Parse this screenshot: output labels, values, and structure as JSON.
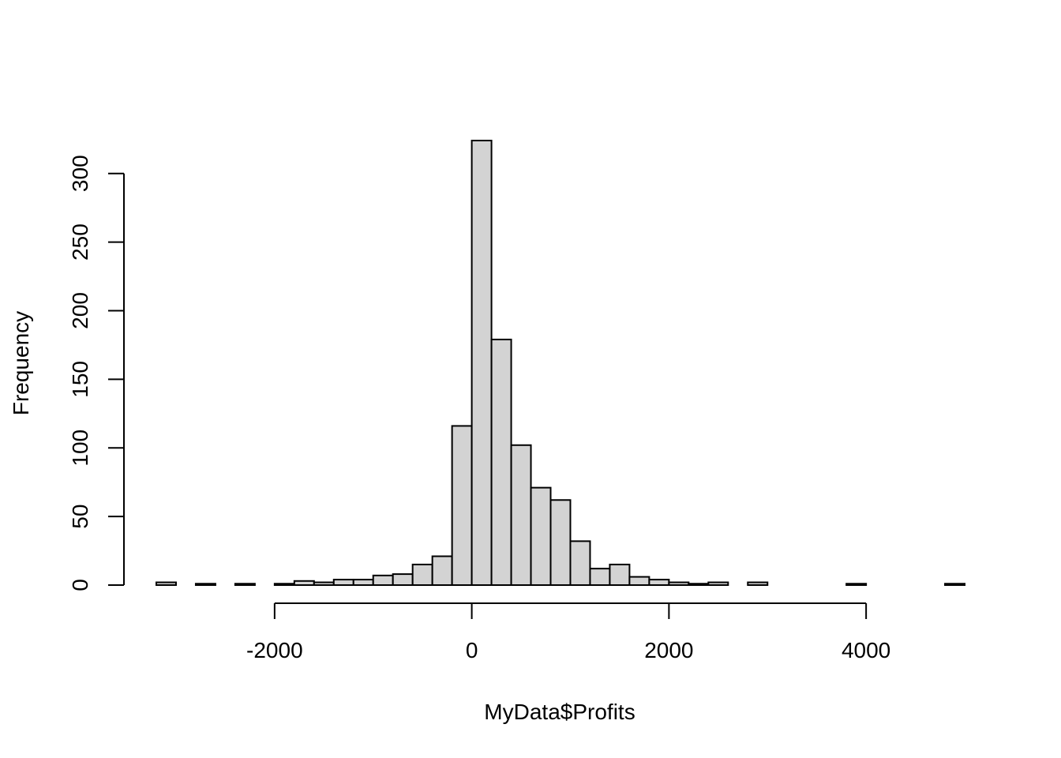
{
  "chart_data": {
    "type": "bar",
    "subtype": "histogram",
    "title": "",
    "xlabel": "MyData$Profits",
    "ylabel": "Frequency",
    "bin_width": 200,
    "bins": [
      {
        "x0": -3200,
        "x1": -3000,
        "count": 2
      },
      {
        "x0": -3000,
        "x1": -2800,
        "count": 0
      },
      {
        "x0": -2800,
        "x1": -2600,
        "count": 1
      },
      {
        "x0": -2600,
        "x1": -2400,
        "count": 0
      },
      {
        "x0": -2400,
        "x1": -2200,
        "count": 1
      },
      {
        "x0": -2200,
        "x1": -2000,
        "count": 0
      },
      {
        "x0": -2000,
        "x1": -1800,
        "count": 1
      },
      {
        "x0": -1800,
        "x1": -1600,
        "count": 3
      },
      {
        "x0": -1600,
        "x1": -1400,
        "count": 2
      },
      {
        "x0": -1400,
        "x1": -1200,
        "count": 4
      },
      {
        "x0": -1200,
        "x1": -1000,
        "count": 4
      },
      {
        "x0": -1000,
        "x1": -800,
        "count": 7
      },
      {
        "x0": -800,
        "x1": -600,
        "count": 8
      },
      {
        "x0": -600,
        "x1": -400,
        "count": 15
      },
      {
        "x0": -400,
        "x1": -200,
        "count": 21
      },
      {
        "x0": -200,
        "x1": 0,
        "count": 116
      },
      {
        "x0": 0,
        "x1": 200,
        "count": 324
      },
      {
        "x0": 200,
        "x1": 400,
        "count": 179
      },
      {
        "x0": 400,
        "x1": 600,
        "count": 102
      },
      {
        "x0": 600,
        "x1": 800,
        "count": 71
      },
      {
        "x0": 800,
        "x1": 1000,
        "count": 62
      },
      {
        "x0": 1000,
        "x1": 1200,
        "count": 32
      },
      {
        "x0": 1200,
        "x1": 1400,
        "count": 12
      },
      {
        "x0": 1400,
        "x1": 1600,
        "count": 15
      },
      {
        "x0": 1600,
        "x1": 1800,
        "count": 6
      },
      {
        "x0": 1800,
        "x1": 2000,
        "count": 4
      },
      {
        "x0": 2000,
        "x1": 2200,
        "count": 2
      },
      {
        "x0": 2200,
        "x1": 2400,
        "count": 1
      },
      {
        "x0": 2400,
        "x1": 2600,
        "count": 2
      },
      {
        "x0": 2600,
        "x1": 2800,
        "count": 0
      },
      {
        "x0": 2800,
        "x1": 3000,
        "count": 2
      },
      {
        "x0": 3000,
        "x1": 3200,
        "count": 0
      },
      {
        "x0": 3200,
        "x1": 3400,
        "count": 0
      },
      {
        "x0": 3400,
        "x1": 3600,
        "count": 0
      },
      {
        "x0": 3600,
        "x1": 3800,
        "count": 0
      },
      {
        "x0": 3800,
        "x1": 4000,
        "count": 1
      },
      {
        "x0": 4000,
        "x1": 4200,
        "count": 0
      },
      {
        "x0": 4200,
        "x1": 4400,
        "count": 0
      },
      {
        "x0": 4400,
        "x1": 4600,
        "count": 0
      },
      {
        "x0": 4600,
        "x1": 4800,
        "count": 0
      },
      {
        "x0": 4800,
        "x1": 5000,
        "count": 1
      }
    ],
    "x_ticks": [
      {
        "value": -2000,
        "label": "-2000"
      },
      {
        "value": 0,
        "label": "0"
      },
      {
        "value": 2000,
        "label": "2000"
      },
      {
        "value": 4000,
        "label": "4000"
      }
    ],
    "y_ticks": [
      {
        "value": 0,
        "label": "0"
      },
      {
        "value": 50,
        "label": "50"
      },
      {
        "value": 100,
        "label": "100"
      },
      {
        "value": 150,
        "label": "150"
      },
      {
        "value": 200,
        "label": "200"
      },
      {
        "value": 250,
        "label": "250"
      },
      {
        "value": 300,
        "label": "300"
      }
    ],
    "xlim": [
      -3200,
      5000
    ],
    "ylim": [
      0,
      324
    ],
    "grid": false,
    "legend": "none",
    "bar_color": "#d3d3d3",
    "edge_color": "#000000"
  }
}
